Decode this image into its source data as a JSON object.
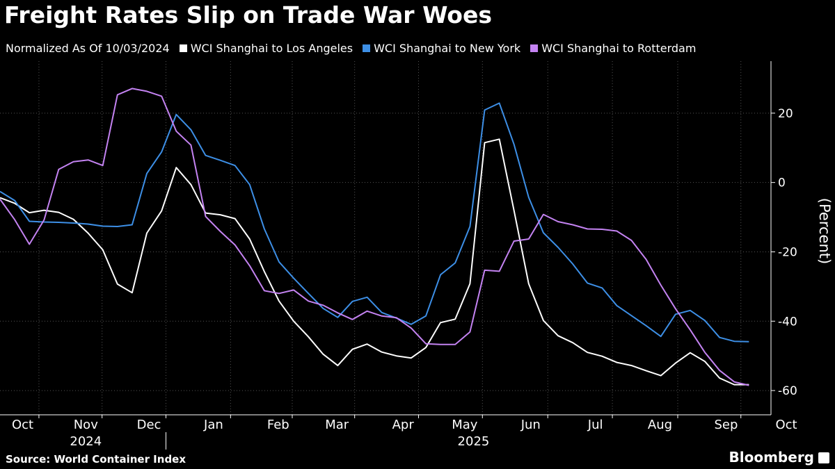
{
  "title": "Freight Rates Slip on Trade War Woes",
  "legend_note": "Normalized As Of 10/03/2024",
  "source": "Source: World Container Index",
  "brand": "Bloomberg",
  "chart_data": {
    "type": "line",
    "title": "Freight Rates Slip on Trade War Woes",
    "subtitle": "Normalized As Of 10/03/2024",
    "ylabel": "(Percent)",
    "xlabel": "",
    "ylim": [
      -67,
      35
    ],
    "yticks": [
      20,
      0,
      -20,
      -40,
      -60
    ],
    "grid": true,
    "x_unit": "weeks since 10/03/2024",
    "xlim": [
      -0.5,
      52
    ],
    "month_ticks": [
      {
        "label": "Oct",
        "x": 0
      },
      {
        "label": "Nov",
        "x": 4.3
      },
      {
        "label": "Dec",
        "x": 8.6
      },
      {
        "label": "Jan",
        "x": 13
      },
      {
        "label": "Feb",
        "x": 17.4
      },
      {
        "label": "Mar",
        "x": 21.4
      },
      {
        "label": "Apr",
        "x": 25.9
      },
      {
        "label": "May",
        "x": 30.1
      },
      {
        "label": "Jun",
        "x": 34.6
      },
      {
        "label": "Jul",
        "x": 39
      },
      {
        "label": "Aug",
        "x": 43.4
      },
      {
        "label": "Sep",
        "x": 47.9
      },
      {
        "label": "Oct",
        "x": 52
      }
    ],
    "year_labels": [
      {
        "label": "2024",
        "x": 4.3
      },
      {
        "label": "2025",
        "x": 30.7
      }
    ],
    "series": [
      {
        "name": "WCI Shanghai to Los Angeles",
        "color": "#ffffff",
        "x": [
          -0.5,
          0.5,
          1.5,
          2.5,
          3.5,
          4.5,
          5.5,
          6.5,
          7.5,
          8.5,
          9.5,
          10.5,
          11.5,
          12.5,
          13.5,
          14.5,
          15.5,
          16.5,
          17.5,
          18.5,
          19.5,
          20.5,
          21.5,
          22.5,
          23.5,
          24.5,
          25.5,
          26.5,
          27.5,
          28.5,
          29.5,
          30.5,
          31.5,
          32.5,
          33.5,
          34.5,
          35.5,
          36.5,
          37.5,
          38.5,
          39.5,
          40.5,
          41.5,
          42.5,
          43.5,
          44.5,
          45.5,
          46.5,
          47.5,
          48.5,
          49.5,
          50.5,
          51.5
        ],
        "values": [
          -4.4,
          -6.0,
          -8.7,
          -8.0,
          -8.6,
          -10.6,
          -14.6,
          -19.4,
          -29.3,
          -31.8,
          -14.6,
          -8.2,
          4.3,
          -0.6,
          -8.8,
          -9.3,
          -10.4,
          -16.3,
          -25.7,
          -34.2,
          -40.0,
          -44.5,
          -49.5,
          -52.8,
          -48.1,
          -46.6,
          -48.9,
          -50.0,
          -50.6,
          -47.6,
          -40.4,
          -39.4,
          -29.2,
          11.5,
          12.5,
          -8.1,
          -29.2,
          -39.8,
          -44.2,
          -46.2,
          -49.0,
          -50.1,
          -51.9,
          -52.8,
          -54.3,
          -55.7,
          -52.1,
          -49.1,
          -51.6,
          -56.4,
          -58.3,
          -58.3,
          null
        ]
      },
      {
        "name": "WCI Shanghai to New York",
        "color": "#3d8fe6",
        "x": [
          -0.5,
          0.5,
          1.5,
          2.5,
          3.5,
          4.5,
          5.5,
          6.5,
          7.5,
          8.5,
          9.5,
          10.5,
          11.5,
          12.5,
          13.5,
          14.5,
          15.5,
          16.5,
          17.5,
          18.5,
          19.5,
          20.5,
          21.5,
          22.5,
          23.5,
          24.5,
          25.5,
          26.5,
          27.5,
          28.5,
          29.5,
          30.5,
          31.5,
          32.5,
          33.5,
          34.5,
          35.5,
          36.5,
          37.5,
          38.5,
          39.5,
          40.5,
          41.5,
          42.5,
          43.5,
          44.5,
          45.5,
          46.5,
          47.5,
          48.5,
          49.5,
          50.5,
          51.5
        ],
        "values": [
          -2.6,
          -5.2,
          -11.2,
          -11.4,
          -11.5,
          -11.7,
          -12.0,
          -12.6,
          -12.7,
          -12.2,
          2.6,
          8.8,
          19.6,
          15.2,
          7.8,
          6.4,
          4.9,
          -0.6,
          -13.4,
          -22.9,
          -27.6,
          -32.0,
          -36.3,
          -38.9,
          -34.3,
          -33.1,
          -37.5,
          -39.1,
          -40.9,
          -38.5,
          -26.6,
          -23.2,
          -12.7,
          20.9,
          22.9,
          11.0,
          -4.3,
          -14.5,
          -18.7,
          -23.5,
          -29.0,
          -30.4,
          -35.5,
          -38.4,
          -41.3,
          -44.4,
          -38.0,
          -36.9,
          -39.8,
          -44.7,
          -45.8,
          -45.9,
          null
        ]
      },
      {
        "name": "WCI Shanghai to Rotterdam",
        "color": "#c483f2",
        "x": [
          -0.5,
          0.5,
          1.5,
          2.5,
          3.5,
          4.5,
          5.5,
          6.5,
          7.5,
          8.5,
          9.5,
          10.5,
          11.5,
          12.5,
          13.5,
          14.5,
          15.5,
          16.5,
          17.5,
          18.5,
          19.5,
          20.5,
          21.5,
          22.5,
          23.5,
          24.5,
          25.5,
          26.5,
          27.5,
          28.5,
          29.5,
          30.5,
          31.5,
          32.5,
          33.5,
          34.5,
          35.5,
          36.5,
          37.5,
          38.5,
          39.5,
          40.5,
          41.5,
          42.5,
          43.5,
          44.5,
          45.5,
          46.5,
          47.5,
          48.5,
          49.5,
          50.5,
          51.5
        ],
        "values": [
          -4.8,
          -10.7,
          -17.8,
          -10.8,
          3.8,
          6.0,
          6.5,
          4.9,
          25.3,
          27.1,
          26.3,
          24.9,
          14.8,
          10.8,
          -9.8,
          -14.1,
          -18.0,
          -24.0,
          -31.2,
          -32.0,
          -31.0,
          -34.2,
          -35.4,
          -37.6,
          -39.5,
          -37.1,
          -38.5,
          -39.0,
          -42.0,
          -46.5,
          -46.7,
          -46.7,
          -43.1,
          -25.3,
          -25.6,
          -16.9,
          -16.3,
          -9.2,
          -11.3,
          -12.2,
          -13.4,
          -13.5,
          -14.0,
          -16.7,
          -22.2,
          -29.6,
          -36.4,
          -42.5,
          -49.0,
          -54.2,
          -57.5,
          -58.5,
          null
        ]
      }
    ]
  }
}
